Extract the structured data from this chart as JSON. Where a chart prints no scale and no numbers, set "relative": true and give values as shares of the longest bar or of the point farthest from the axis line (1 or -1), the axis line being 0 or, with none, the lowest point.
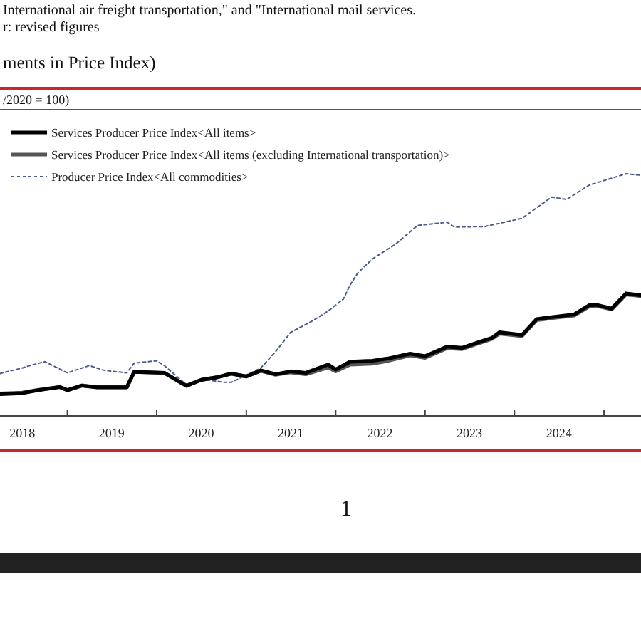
{
  "chart_data": {
    "type": "line",
    "title": "ments in Price Index)",
    "subtitle": "/2020 = 100)",
    "annotations": [
      "International air freight transportation,\" and \"International mail services.",
      "r: revised figures",
      "1"
    ],
    "relative": true,
    "legend": "top left",
    "xlim": [
      "2018-04",
      "2025-06"
    ],
    "xticks": [
      {
        "value": "2018-07",
        "label": "2018"
      },
      {
        "value": "2019-01",
        "label": null
      },
      {
        "value": "2019-07",
        "label": "2019"
      },
      {
        "value": "2020-01",
        "label": null
      },
      {
        "value": "2020-07",
        "label": "2020"
      },
      {
        "value": "2021-01",
        "label": null
      },
      {
        "value": "2021-07",
        "label": "2021"
      },
      {
        "value": "2022-01",
        "label": null
      },
      {
        "value": "2022-07",
        "label": "2022"
      },
      {
        "value": "2023-01",
        "label": null
      },
      {
        "value": "2023-07",
        "label": "2023"
      },
      {
        "value": "2024-01",
        "label": null
      },
      {
        "value": "2024-07",
        "label": "2024"
      },
      {
        "value": "2025-01",
        "label": null
      }
    ],
    "series": [
      {
        "name": "Services Producer Price Index<All items>",
        "color": "#000000",
        "line_style": "solid",
        "x": [
          "2018-04",
          "2018-07",
          "2018-09",
          "2018-12",
          "2019-01",
          "2019-03",
          "2019-05",
          "2019-09",
          "2019-10",
          "2020-02",
          "2020-05",
          "2020-07",
          "2020-09",
          "2020-11",
          "2021-01",
          "2021-03",
          "2021-05",
          "2021-07",
          "2021-09",
          "2021-12",
          "2022-01",
          "2022-03",
          "2022-06",
          "2022-08",
          "2022-11",
          "2023-01",
          "2023-04",
          "2023-06",
          "2023-08",
          "2023-10",
          "2023-11",
          "2024-02",
          "2024-04",
          "2024-06",
          "2024-09",
          "2024-11",
          "2024-12",
          "2025-02",
          "2025-04",
          "2025-06"
        ],
        "values": [
          0.09,
          0.094,
          0.106,
          0.119,
          0.106,
          0.125,
          0.118,
          0.118,
          0.182,
          0.178,
          0.124,
          0.149,
          0.159,
          0.175,
          0.163,
          0.188,
          0.172,
          0.184,
          0.178,
          0.212,
          0.192,
          0.224,
          0.228,
          0.237,
          0.257,
          0.247,
          0.286,
          0.281,
          0.302,
          0.322,
          0.345,
          0.334,
          0.4,
          0.408,
          0.419,
          0.457,
          0.459,
          0.443,
          0.506,
          0.498
        ]
      },
      {
        "name": "Services Producer Price Index<All items (excluding International transportation)>",
        "color": "#555555",
        "line_style": "solid",
        "x": [
          "2018-04",
          "2018-07",
          "2018-09",
          "2018-12",
          "2019-01",
          "2019-03",
          "2019-05",
          "2019-09",
          "2019-10",
          "2020-02",
          "2020-05",
          "2020-07",
          "2020-09",
          "2020-11",
          "2021-01",
          "2021-03",
          "2021-05",
          "2021-07",
          "2021-09",
          "2021-12",
          "2022-01",
          "2022-03",
          "2022-06",
          "2022-08",
          "2022-11",
          "2023-01",
          "2023-04",
          "2023-06",
          "2023-08",
          "2023-10",
          "2023-11",
          "2024-02",
          "2024-04",
          "2024-06",
          "2024-09",
          "2024-11",
          "2024-12",
          "2025-02",
          "2025-04",
          "2025-06"
        ],
        "values": [
          0.092,
          0.096,
          0.107,
          0.12,
          0.107,
          0.126,
          0.119,
          0.119,
          0.182,
          0.178,
          0.125,
          0.149,
          0.159,
          0.174,
          0.163,
          0.186,
          0.17,
          0.18,
          0.172,
          0.2,
          0.184,
          0.212,
          0.216,
          0.227,
          0.25,
          0.24,
          0.28,
          0.276,
          0.298,
          0.318,
          0.34,
          0.33,
          0.396,
          0.404,
          0.415,
          0.452,
          0.455,
          0.44,
          0.502,
          0.495
        ]
      },
      {
        "name": "Producer Price Index<All commodities>",
        "color": "#4a5a8c",
        "line_style": "dotted",
        "x": [
          "2018-04",
          "2018-07",
          "2018-08",
          "2018-10",
          "2019-01",
          "2019-04",
          "2019-06",
          "2019-09",
          "2019-10",
          "2020-01",
          "2020-02",
          "2020-05",
          "2020-07",
          "2020-10",
          "2020-11",
          "2021-01",
          "2021-03",
          "2021-05",
          "2021-07",
          "2021-10",
          "2021-12",
          "2022-02",
          "2022-03",
          "2022-04",
          "2022-06",
          "2022-09",
          "2022-12",
          "2023-01",
          "2023-04",
          "2023-05",
          "2023-09",
          "2024-02",
          "2024-06",
          "2024-08",
          "2024-11",
          "2025-04",
          "2025-06"
        ],
        "values": [
          0.175,
          0.198,
          0.208,
          0.224,
          0.178,
          0.208,
          0.188,
          0.178,
          0.218,
          0.228,
          0.208,
          0.129,
          0.153,
          0.139,
          0.139,
          0.169,
          0.198,
          0.266,
          0.345,
          0.394,
          0.433,
          0.482,
          0.541,
          0.59,
          0.649,
          0.708,
          0.786,
          0.79,
          0.8,
          0.78,
          0.782,
          0.816,
          0.904,
          0.894,
          0.953,
          1,
          0.994
        ]
      }
    ]
  }
}
